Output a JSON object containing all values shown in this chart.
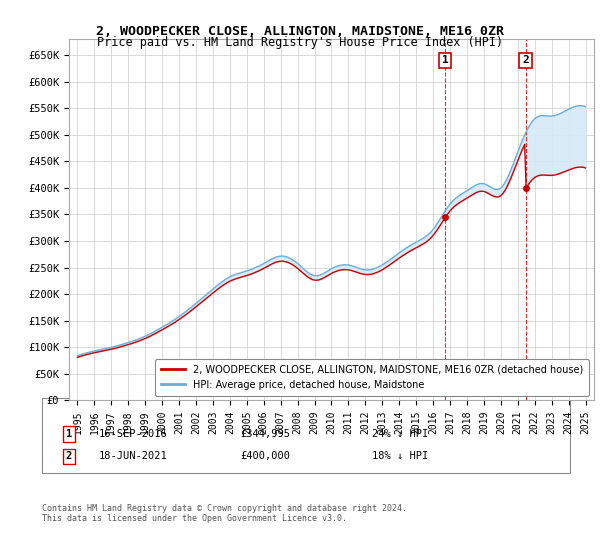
{
  "title": "2, WOODPECKER CLOSE, ALLINGTON, MAIDSTONE, ME16 0ZR",
  "subtitle": "Price paid vs. HM Land Registry's House Price Index (HPI)",
  "ylim": [
    0,
    680000
  ],
  "yticks": [
    0,
    50000,
    100000,
    150000,
    200000,
    250000,
    300000,
    350000,
    400000,
    450000,
    500000,
    550000,
    600000,
    650000
  ],
  "ytick_labels": [
    "£0",
    "£50K",
    "£100K",
    "£150K",
    "£200K",
    "£250K",
    "£300K",
    "£350K",
    "£400K",
    "£450K",
    "£500K",
    "£550K",
    "£600K",
    "£650K"
  ],
  "hpi_color": "#6baed6",
  "price_color": "#cc0000",
  "fill_color": "#d6e9f8",
  "transaction_1": {
    "date_label": "16-SEP-2016",
    "price": 344995,
    "pct": "24% ↓ HPI",
    "x": 2016.71
  },
  "transaction_2": {
    "date_label": "18-JUN-2021",
    "price": 400000,
    "pct": "18% ↓ HPI",
    "x": 2021.46
  },
  "legend_property": "2, WOODPECKER CLOSE, ALLINGTON, MAIDSTONE, ME16 0ZR (detached house)",
  "legend_hpi": "HPI: Average price, detached house, Maidstone",
  "footnote": "Contains HM Land Registry data © Crown copyright and database right 2024.\nThis data is licensed under the Open Government Licence v3.0.",
  "xlim": [
    1994.5,
    2025.5
  ],
  "xtick_years": [
    1995,
    1996,
    1997,
    1998,
    1999,
    2000,
    2001,
    2002,
    2003,
    2004,
    2005,
    2006,
    2007,
    2008,
    2009,
    2010,
    2011,
    2012,
    2013,
    2014,
    2015,
    2016,
    2017,
    2018,
    2019,
    2020,
    2021,
    2022,
    2023,
    2024,
    2025
  ],
  "background_color": "#ffffff",
  "grid_color": "#cccccc"
}
